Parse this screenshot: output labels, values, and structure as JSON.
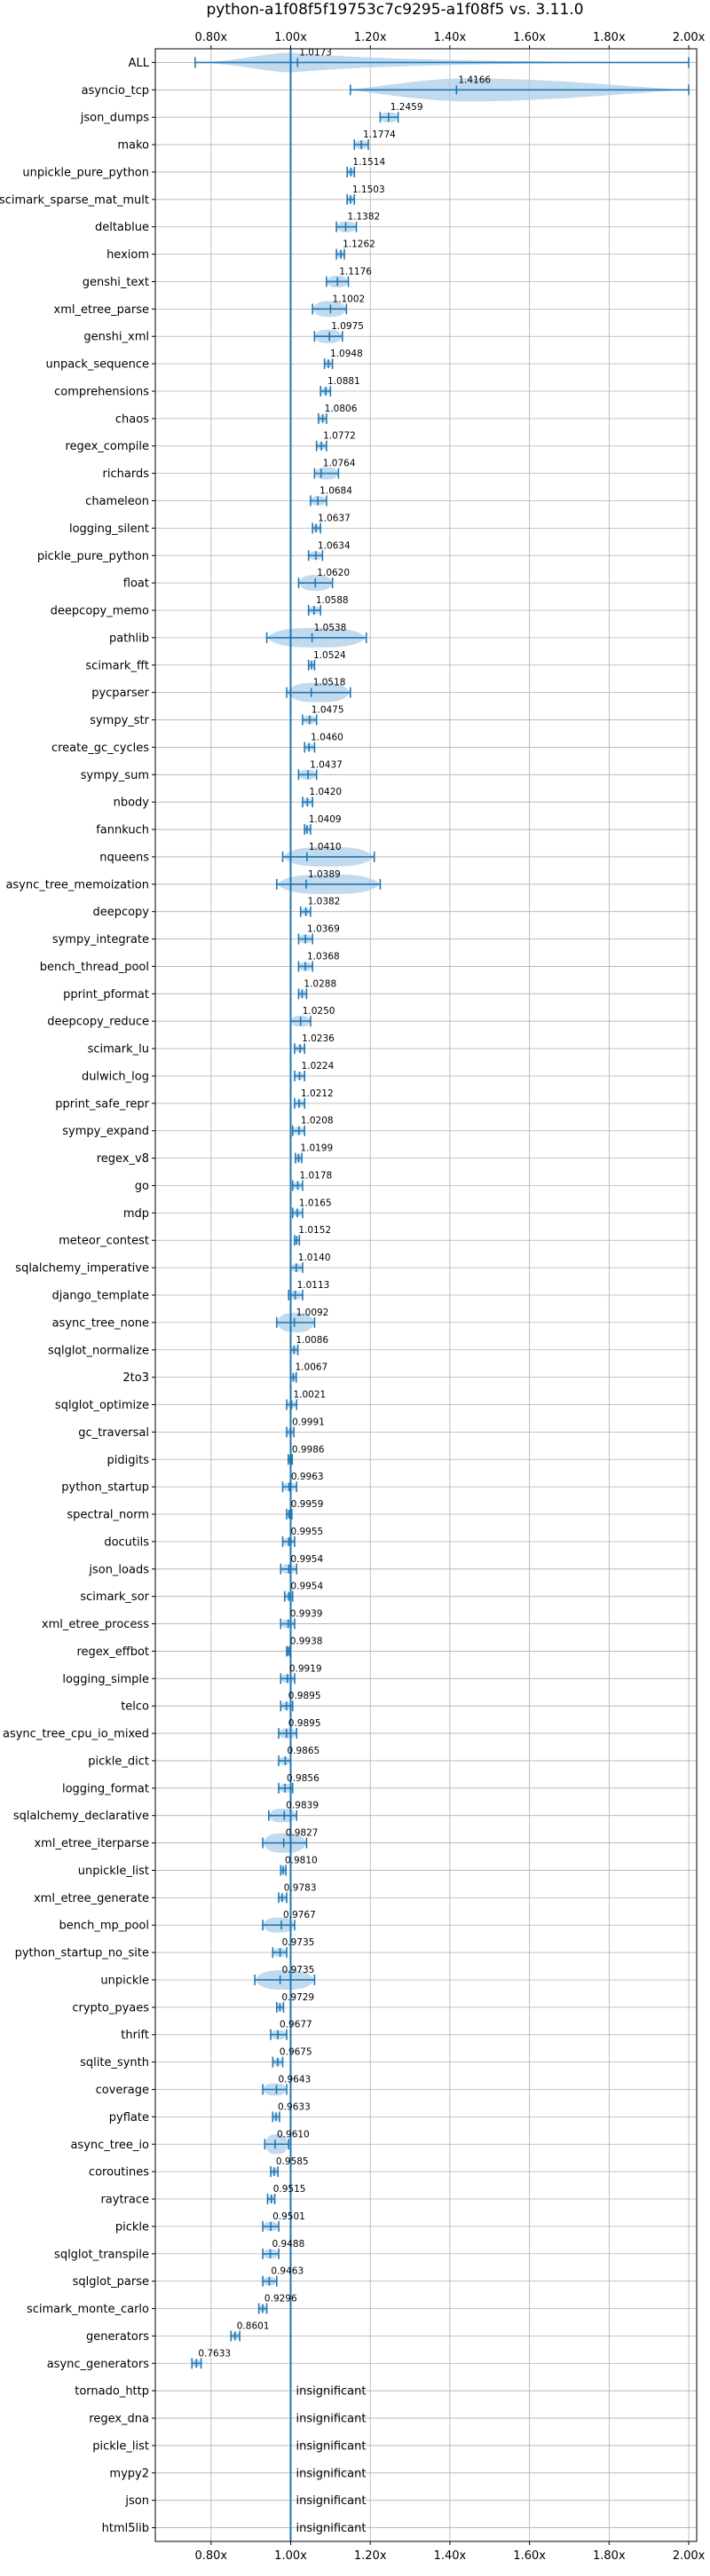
{
  "chart_data": {
    "type": "violin",
    "title": "python-a1f08f5f19753c7c9295-a1f08f5 vs. 3.11.0",
    "xlabel": "",
    "ylabel": "",
    "xlim": [
      0.66,
      2.02
    ],
    "x_ticks": [
      0.8,
      1.0,
      1.2,
      1.4,
      1.6,
      1.8,
      2.0
    ],
    "x_tick_labels": [
      "0.80x",
      "1.00x",
      "1.20x",
      "1.40x",
      "1.60x",
      "1.80x",
      "2.00x"
    ],
    "reference_line": 1.0,
    "grid": true,
    "colors": {
      "violin": "#aecde8",
      "line": "#1f77b4",
      "grid": "#b0b0b0"
    },
    "benchmarks": [
      {
        "name": "ALL",
        "mean_label": "1.0173",
        "mean": 1.0173,
        "min": 0.76,
        "max": 2.0,
        "kde": "wide"
      },
      {
        "name": "asyncio_tcp",
        "mean_label": "1.4166",
        "mean": 1.4166,
        "min": 1.15,
        "max": 2.0,
        "kde": "skew"
      },
      {
        "name": "json_dumps",
        "mean_label": "1.2459",
        "mean": 1.2459,
        "min": 1.225,
        "max": 1.27
      },
      {
        "name": "mako",
        "mean_label": "1.1774",
        "mean": 1.1774,
        "min": 1.16,
        "max": 1.195
      },
      {
        "name": "unpickle_pure_python",
        "mean_label": "1.1514",
        "mean": 1.1514,
        "min": 1.142,
        "max": 1.16
      },
      {
        "name": "scimark_sparse_mat_mult",
        "mean_label": "1.1503",
        "mean": 1.1503,
        "min": 1.142,
        "max": 1.16
      },
      {
        "name": "deltablue",
        "mean_label": "1.1382",
        "mean": 1.1382,
        "min": 1.115,
        "max": 1.165
      },
      {
        "name": "hexiom",
        "mean_label": "1.1262",
        "mean": 1.1262,
        "min": 1.115,
        "max": 1.135
      },
      {
        "name": "genshi_text",
        "mean_label": "1.1176",
        "mean": 1.1176,
        "min": 1.09,
        "max": 1.145
      },
      {
        "name": "xml_etree_parse",
        "mean_label": "1.1002",
        "mean": 1.1002,
        "min": 1.055,
        "max": 1.14
      },
      {
        "name": "genshi_xml",
        "mean_label": "1.0975",
        "mean": 1.0975,
        "min": 1.06,
        "max": 1.13
      },
      {
        "name": "unpack_sequence",
        "mean_label": "1.0948",
        "mean": 1.0948,
        "min": 1.085,
        "max": 1.105
      },
      {
        "name": "comprehensions",
        "mean_label": "1.0881",
        "mean": 1.0881,
        "min": 1.075,
        "max": 1.1
      },
      {
        "name": "chaos",
        "mean_label": "1.0806",
        "mean": 1.0806,
        "min": 1.07,
        "max": 1.09
      },
      {
        "name": "regex_compile",
        "mean_label": "1.0772",
        "mean": 1.0772,
        "min": 1.065,
        "max": 1.09
      },
      {
        "name": "richards",
        "mean_label": "1.0764",
        "mean": 1.0764,
        "min": 1.06,
        "max": 1.12
      },
      {
        "name": "chameleon",
        "mean_label": "1.0684",
        "mean": 1.0684,
        "min": 1.05,
        "max": 1.09
      },
      {
        "name": "logging_silent",
        "mean_label": "1.0637",
        "mean": 1.0637,
        "min": 1.055,
        "max": 1.075
      },
      {
        "name": "pickle_pure_python",
        "mean_label": "1.0634",
        "mean": 1.0634,
        "min": 1.045,
        "max": 1.08
      },
      {
        "name": "float",
        "mean_label": "1.0620",
        "mean": 1.062,
        "min": 1.02,
        "max": 1.105
      },
      {
        "name": "deepcopy_memo",
        "mean_label": "1.0588",
        "mean": 1.0588,
        "min": 1.045,
        "max": 1.075
      },
      {
        "name": "pathlib",
        "mean_label": "1.0538",
        "mean": 1.0538,
        "min": 0.94,
        "max": 1.19,
        "kde": "wide"
      },
      {
        "name": "scimark_fft",
        "mean_label": "1.0524",
        "mean": 1.0524,
        "min": 1.045,
        "max": 1.06
      },
      {
        "name": "pycparser",
        "mean_label": "1.0518",
        "mean": 1.0518,
        "min": 0.99,
        "max": 1.15,
        "kde": "wide"
      },
      {
        "name": "sympy_str",
        "mean_label": "1.0475",
        "mean": 1.0475,
        "min": 1.03,
        "max": 1.065
      },
      {
        "name": "create_gc_cycles",
        "mean_label": "1.0460",
        "mean": 1.046,
        "min": 1.035,
        "max": 1.06
      },
      {
        "name": "sympy_sum",
        "mean_label": "1.0437",
        "mean": 1.0437,
        "min": 1.02,
        "max": 1.065
      },
      {
        "name": "nbody",
        "mean_label": "1.0420",
        "mean": 1.042,
        "min": 1.03,
        "max": 1.055
      },
      {
        "name": "fannkuch",
        "mean_label": "1.0409",
        "mean": 1.0409,
        "min": 1.035,
        "max": 1.05
      },
      {
        "name": "nqueens",
        "mean_label": "1.0410",
        "mean": 1.041,
        "min": 0.98,
        "max": 1.21,
        "kde": "wide"
      },
      {
        "name": "async_tree_memoization",
        "mean_label": "1.0389",
        "mean": 1.0389,
        "min": 0.965,
        "max": 1.225,
        "kde": "wide"
      },
      {
        "name": "deepcopy",
        "mean_label": "1.0382",
        "mean": 1.0382,
        "min": 1.025,
        "max": 1.05
      },
      {
        "name": "sympy_integrate",
        "mean_label": "1.0369",
        "mean": 1.0369,
        "min": 1.02,
        "max": 1.055
      },
      {
        "name": "bench_thread_pool",
        "mean_label": "1.0368",
        "mean": 1.0368,
        "min": 1.02,
        "max": 1.055
      },
      {
        "name": "pprint_pformat",
        "mean_label": "1.0288",
        "mean": 1.0288,
        "min": 1.02,
        "max": 1.04
      },
      {
        "name": "deepcopy_reduce",
        "mean_label": "1.0250",
        "mean": 1.025,
        "min": 1.0,
        "max": 1.05
      },
      {
        "name": "scimark_lu",
        "mean_label": "1.0236",
        "mean": 1.0236,
        "min": 1.01,
        "max": 1.035
      },
      {
        "name": "dulwich_log",
        "mean_label": "1.0224",
        "mean": 1.0224,
        "min": 1.01,
        "max": 1.035
      },
      {
        "name": "pprint_safe_repr",
        "mean_label": "1.0212",
        "mean": 1.0212,
        "min": 1.01,
        "max": 1.035
      },
      {
        "name": "sympy_expand",
        "mean_label": "1.0208",
        "mean": 1.0208,
        "min": 1.005,
        "max": 1.035
      },
      {
        "name": "regex_v8",
        "mean_label": "1.0199",
        "mean": 1.0199,
        "min": 1.012,
        "max": 1.028
      },
      {
        "name": "go",
        "mean_label": "1.0178",
        "mean": 1.0178,
        "min": 1.005,
        "max": 1.03
      },
      {
        "name": "mdp",
        "mean_label": "1.0165",
        "mean": 1.0165,
        "min": 1.005,
        "max": 1.03
      },
      {
        "name": "meteor_contest",
        "mean_label": "1.0152",
        "mean": 1.0152,
        "min": 1.01,
        "max": 1.022
      },
      {
        "name": "sqlalchemy_imperative",
        "mean_label": "1.0140",
        "mean": 1.014,
        "min": 1.0,
        "max": 1.03
      },
      {
        "name": "django_template",
        "mean_label": "1.0113",
        "mean": 1.0113,
        "min": 0.995,
        "max": 1.03
      },
      {
        "name": "async_tree_none",
        "mean_label": "1.0092",
        "mean": 1.0092,
        "min": 0.965,
        "max": 1.06,
        "kde": "wide"
      },
      {
        "name": "sqlglot_normalize",
        "mean_label": "1.0086",
        "mean": 1.0086,
        "min": 1.0,
        "max": 1.018
      },
      {
        "name": "2to3",
        "mean_label": "1.0067",
        "mean": 1.0067,
        "min": 1.0,
        "max": 1.014
      },
      {
        "name": "sqlglot_optimize",
        "mean_label": "1.0021",
        "mean": 1.0021,
        "min": 0.99,
        "max": 1.015
      },
      {
        "name": "gc_traversal",
        "mean_label": "0.9991",
        "mean": 0.9991,
        "min": 0.99,
        "max": 1.008
      },
      {
        "name": "pidigits",
        "mean_label": "0.9986",
        "mean": 0.9986,
        "min": 0.994,
        "max": 1.004
      },
      {
        "name": "python_startup",
        "mean_label": "0.9963",
        "mean": 0.9963,
        "min": 0.98,
        "max": 1.015
      },
      {
        "name": "spectral_norm",
        "mean_label": "0.9959",
        "mean": 0.9959,
        "min": 0.99,
        "max": 1.003
      },
      {
        "name": "docutils",
        "mean_label": "0.9955",
        "mean": 0.9955,
        "min": 0.98,
        "max": 1.01
      },
      {
        "name": "json_loads",
        "mean_label": "0.9954",
        "mean": 0.9954,
        "min": 0.975,
        "max": 1.015
      },
      {
        "name": "scimark_sor",
        "mean_label": "0.9954",
        "mean": 0.9954,
        "min": 0.985,
        "max": 1.005
      },
      {
        "name": "xml_etree_process",
        "mean_label": "0.9939",
        "mean": 0.9939,
        "min": 0.975,
        "max": 1.01
      },
      {
        "name": "regex_effbot",
        "mean_label": "0.9938",
        "mean": 0.9938,
        "min": 0.99,
        "max": 0.998
      },
      {
        "name": "logging_simple",
        "mean_label": "0.9919",
        "mean": 0.9919,
        "min": 0.975,
        "max": 1.01
      },
      {
        "name": "telco",
        "mean_label": "0.9895",
        "mean": 0.9895,
        "min": 0.975,
        "max": 1.005
      },
      {
        "name": "async_tree_cpu_io_mixed",
        "mean_label": "0.9895",
        "mean": 0.9895,
        "min": 0.97,
        "max": 1.015
      },
      {
        "name": "pickle_dict",
        "mean_label": "0.9865",
        "mean": 0.9865,
        "min": 0.97,
        "max": 1.0
      },
      {
        "name": "logging_format",
        "mean_label": "0.9856",
        "mean": 0.9856,
        "min": 0.97,
        "max": 1.005
      },
      {
        "name": "sqlalchemy_declarative",
        "mean_label": "0.9839",
        "mean": 0.9839,
        "min": 0.945,
        "max": 1.015
      },
      {
        "name": "xml_etree_iterparse",
        "mean_label": "0.9827",
        "mean": 0.9827,
        "min": 0.93,
        "max": 1.04,
        "kde": "wide"
      },
      {
        "name": "unpickle_list",
        "mean_label": "0.9810",
        "mean": 0.981,
        "min": 0.975,
        "max": 0.988
      },
      {
        "name": "xml_etree_generate",
        "mean_label": "0.9783",
        "mean": 0.9783,
        "min": 0.97,
        "max": 0.99
      },
      {
        "name": "bench_mp_pool",
        "mean_label": "0.9767",
        "mean": 0.9767,
        "min": 0.93,
        "max": 1.01
      },
      {
        "name": "python_startup_no_site",
        "mean_label": "0.9735",
        "mean": 0.9735,
        "min": 0.955,
        "max": 0.99
      },
      {
        "name": "unpickle",
        "mean_label": "0.9735",
        "mean": 0.9735,
        "min": 0.91,
        "max": 1.06
      },
      {
        "name": "crypto_pyaes",
        "mean_label": "0.9729",
        "mean": 0.9729,
        "min": 0.965,
        "max": 0.982
      },
      {
        "name": "thrift",
        "mean_label": "0.9677",
        "mean": 0.9677,
        "min": 0.95,
        "max": 0.99
      },
      {
        "name": "sqlite_synth",
        "mean_label": "0.9675",
        "mean": 0.9675,
        "min": 0.955,
        "max": 0.98
      },
      {
        "name": "coverage",
        "mean_label": "0.9643",
        "mean": 0.9643,
        "min": 0.93,
        "max": 0.99
      },
      {
        "name": "pyflate",
        "mean_label": "0.9633",
        "mean": 0.9633,
        "min": 0.955,
        "max": 0.972
      },
      {
        "name": "async_tree_io",
        "mean_label": "0.9610",
        "mean": 0.961,
        "min": 0.935,
        "max": 0.995,
        "kde": "wide"
      },
      {
        "name": "coroutines",
        "mean_label": "0.9585",
        "mean": 0.9585,
        "min": 0.95,
        "max": 0.968
      },
      {
        "name": "raytrace",
        "mean_label": "0.9515",
        "mean": 0.9515,
        "min": 0.942,
        "max": 0.96
      },
      {
        "name": "pickle",
        "mean_label": "0.9501",
        "mean": 0.9501,
        "min": 0.93,
        "max": 0.97
      },
      {
        "name": "sqlglot_transpile",
        "mean_label": "0.9488",
        "mean": 0.9488,
        "min": 0.93,
        "max": 0.97
      },
      {
        "name": "sqlglot_parse",
        "mean_label": "0.9463",
        "mean": 0.9463,
        "min": 0.93,
        "max": 0.965
      },
      {
        "name": "scimark_monte_carlo",
        "mean_label": "0.9296",
        "mean": 0.9296,
        "min": 0.92,
        "max": 0.94
      },
      {
        "name": "generators",
        "mean_label": "0.8601",
        "mean": 0.8601,
        "min": 0.85,
        "max": 0.872
      },
      {
        "name": "async_generators",
        "mean_label": "0.7633",
        "mean": 0.7633,
        "min": 0.752,
        "max": 0.775
      },
      {
        "name": "tornado_http",
        "mean_label": "insignificant"
      },
      {
        "name": "regex_dna",
        "mean_label": "insignificant"
      },
      {
        "name": "pickle_list",
        "mean_label": "insignificant"
      },
      {
        "name": "mypy2",
        "mean_label": "insignificant"
      },
      {
        "name": "json",
        "mean_label": "insignificant"
      },
      {
        "name": "html5lib",
        "mean_label": "insignificant"
      }
    ]
  }
}
